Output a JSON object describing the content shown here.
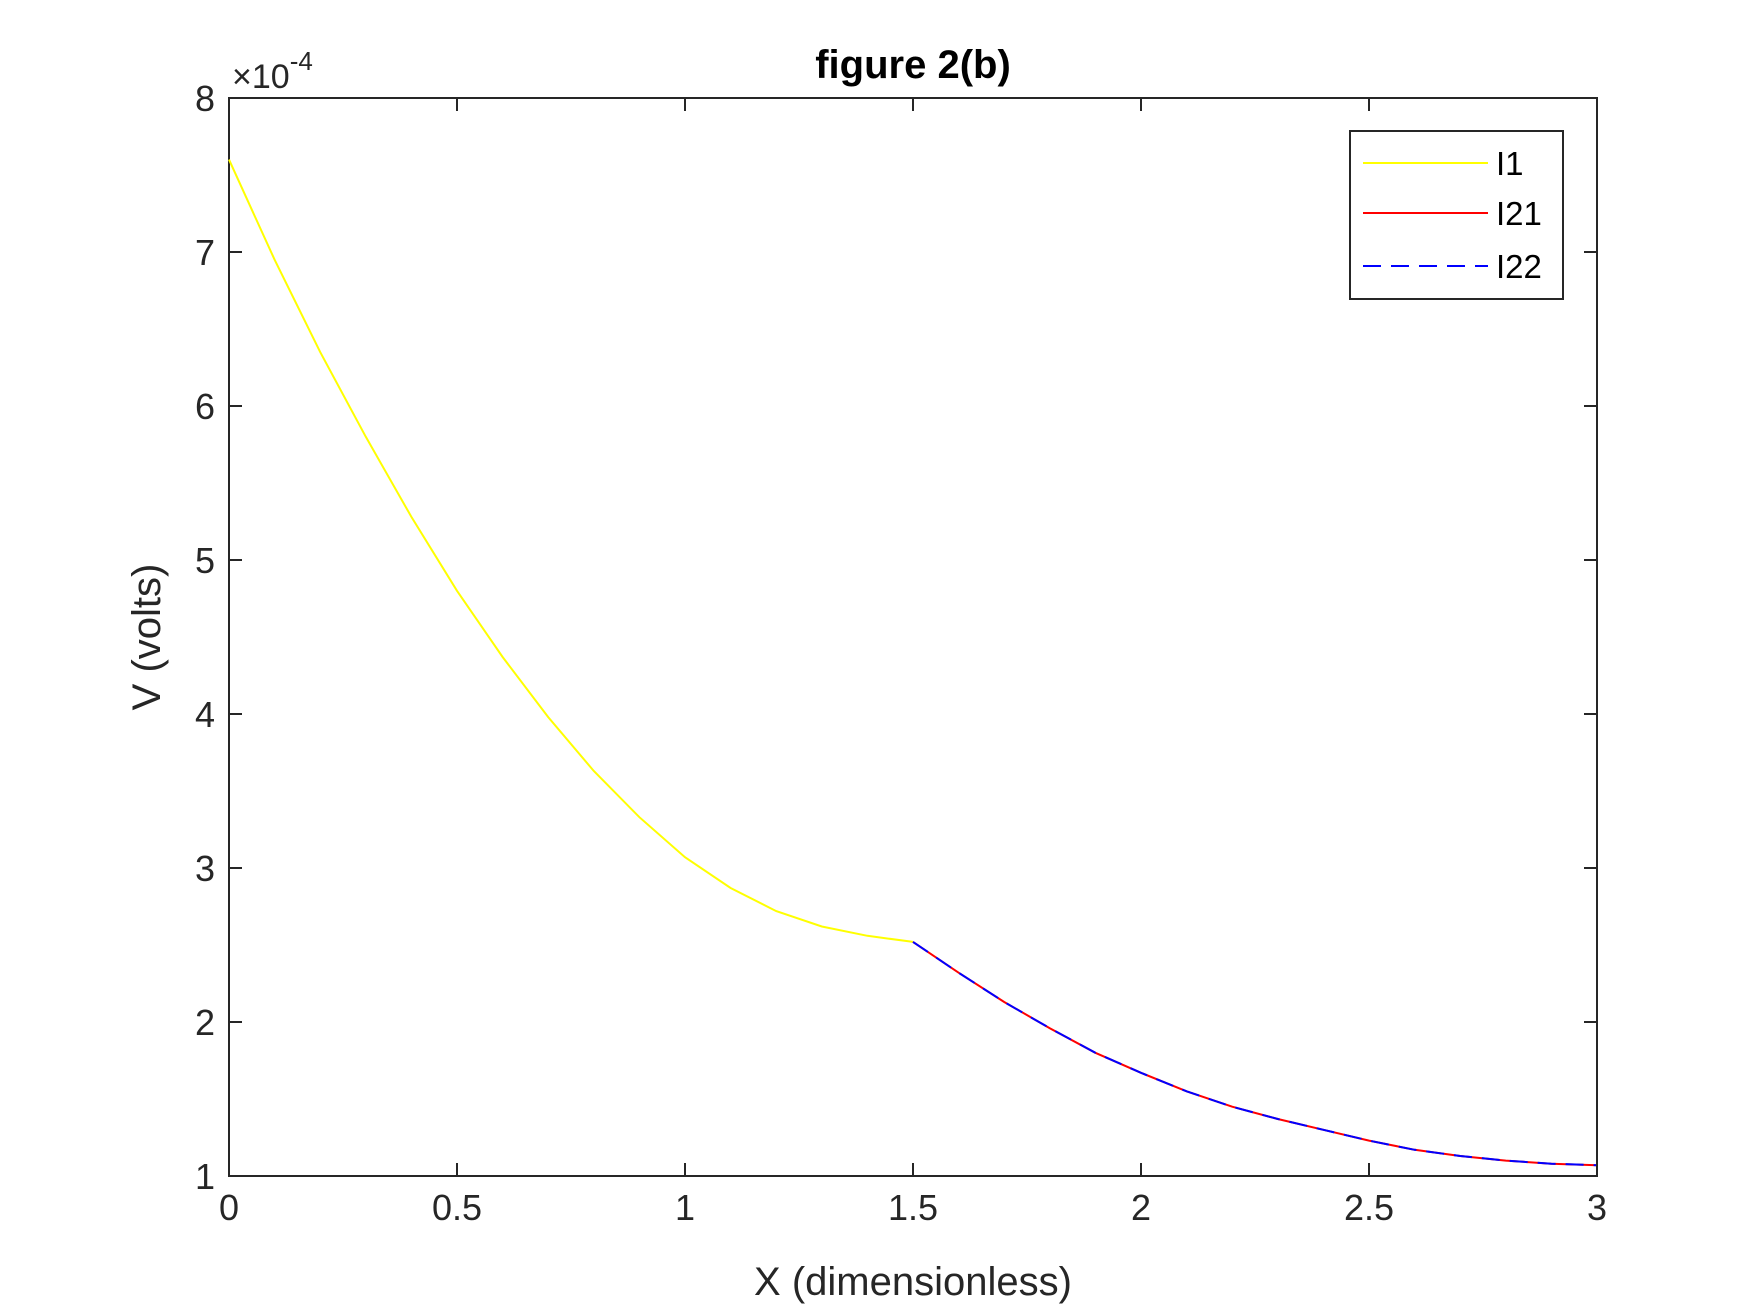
{
  "chart_data": {
    "type": "line",
    "title": "figure 2(b)",
    "xlabel": "X (dimensionless)",
    "ylabel": "V (volts)",
    "y_exponent_label": "×10",
    "y_exponent_power": "-4",
    "xlim": [
      0,
      3
    ],
    "ylim": [
      1,
      8
    ],
    "xticks": [
      0,
      0.5,
      1,
      1.5,
      2,
      2.5,
      3
    ],
    "xtick_labels": [
      "0",
      "0.5",
      "1",
      "1.5",
      "2",
      "2.5",
      "3"
    ],
    "yticks": [
      1,
      2,
      3,
      4,
      5,
      6,
      7,
      8
    ],
    "ytick_labels": [
      "1",
      "2",
      "3",
      "4",
      "5",
      "6",
      "7",
      "8"
    ],
    "grid": false,
    "legend_position": "top-right",
    "series": [
      {
        "name": "I1",
        "color": "#ffff00",
        "style": "solid",
        "x": [
          0,
          0.1,
          0.2,
          0.3,
          0.4,
          0.5,
          0.6,
          0.7,
          0.8,
          0.9,
          1.0,
          1.1,
          1.2,
          1.3,
          1.4,
          1.5
        ],
        "y": [
          7.6,
          6.95,
          6.35,
          5.8,
          5.28,
          4.8,
          4.37,
          3.98,
          3.63,
          3.33,
          3.07,
          2.87,
          2.72,
          2.62,
          2.56,
          2.52
        ]
      },
      {
        "name": "I21",
        "color": "#ff0000",
        "style": "solid",
        "x": [
          1.5,
          1.6,
          1.7,
          1.8,
          1.9,
          2.0,
          2.1,
          2.2,
          2.3,
          2.4,
          2.5,
          2.6,
          2.7,
          2.8,
          2.9,
          3.0
        ],
        "y": [
          2.52,
          2.32,
          2.13,
          1.96,
          1.8,
          1.67,
          1.55,
          1.45,
          1.37,
          1.3,
          1.23,
          1.17,
          1.13,
          1.1,
          1.08,
          1.07
        ]
      },
      {
        "name": "I22",
        "color": "#0000ff",
        "style": "dashed",
        "x": [
          1.5,
          1.6,
          1.7,
          1.8,
          1.9,
          2.0,
          2.1,
          2.2,
          2.3,
          2.4,
          2.5,
          2.6,
          2.7,
          2.8,
          2.9,
          3.0
        ],
        "y": [
          2.52,
          2.32,
          2.13,
          1.96,
          1.8,
          1.67,
          1.55,
          1.45,
          1.37,
          1.3,
          1.23,
          1.17,
          1.13,
          1.1,
          1.08,
          1.07
        ]
      }
    ]
  }
}
